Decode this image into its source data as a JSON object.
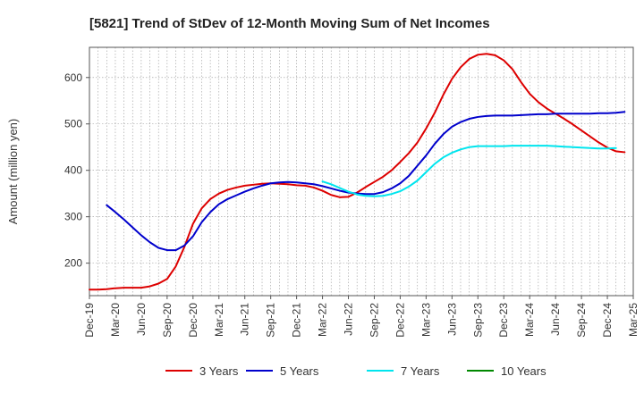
{
  "chart_data": {
    "type": "line",
    "title": "[5821]  Trend of StDev of 12-Month Moving Sum of Net Incomes",
    "ylabel": "Amount (million yen)",
    "xlabel": "",
    "ylim": [
      130,
      665
    ],
    "yticks": [
      200,
      300,
      400,
      500,
      600
    ],
    "x_tick_labels": [
      "Dec-19",
      "Mar-20",
      "Jun-20",
      "Sep-20",
      "Dec-20",
      "Mar-21",
      "Jun-21",
      "Sep-21",
      "Dec-21",
      "Mar-22",
      "Jun-22",
      "Sep-22",
      "Dec-22",
      "Mar-23",
      "Jun-23",
      "Sep-23",
      "Dec-23",
      "Mar-24",
      "Jun-24",
      "Sep-24",
      "Dec-24",
      "Mar-25"
    ],
    "grid": true,
    "legend_position": "bottom",
    "series": [
      {
        "name": "3 Years",
        "color": "#dd0000",
        "values": [
          143,
          143,
          144,
          146,
          147,
          147,
          147,
          150,
          156,
          166,
          193,
          235,
          285,
          318,
          338,
          350,
          358,
          363,
          367,
          369,
          371,
          372,
          371,
          370,
          368,
          367,
          363,
          356,
          347,
          342,
          343,
          352,
          364,
          375,
          386,
          400,
          418,
          437,
          460,
          490,
          524,
          563,
          597,
          622,
          640,
          649,
          651,
          648,
          637,
          618,
          590,
          565,
          547,
          533,
          522,
          511,
          499,
          486,
          473,
          460,
          449,
          441,
          439
        ],
        "x_start_index": 0
      },
      {
        "name": "5 Years",
        "color": "#0000cc",
        "values": [
          325,
          310,
          294,
          277,
          260,
          245,
          233,
          228,
          228,
          238,
          258,
          288,
          310,
          327,
          338,
          346,
          354,
          361,
          367,
          372,
          374,
          375,
          374,
          372,
          370,
          366,
          361,
          356,
          352,
          350,
          349,
          349,
          353,
          361,
          372,
          388,
          410,
          432,
          457,
          478,
          494,
          504,
          511,
          515,
          517,
          518,
          518,
          518,
          519,
          520,
          521,
          521,
          522,
          522,
          522,
          522,
          522,
          523,
          523,
          524,
          526
        ],
        "x_start_index": 2
      },
      {
        "name": "7 Years",
        "color": "#00e5ee",
        "values": [
          376,
          370,
          362,
          354,
          348,
          345,
          344,
          345,
          349,
          355,
          365,
          378,
          396,
          414,
          428,
          438,
          445,
          450,
          452,
          452,
          452,
          452,
          453,
          453,
          453,
          453,
          453,
          452,
          451,
          450,
          449,
          448,
          447,
          447,
          448
        ],
        "x_start_index": 27
      },
      {
        "name": "10 Years",
        "color": "#008800",
        "values": [],
        "x_start_index": 0
      }
    ]
  }
}
